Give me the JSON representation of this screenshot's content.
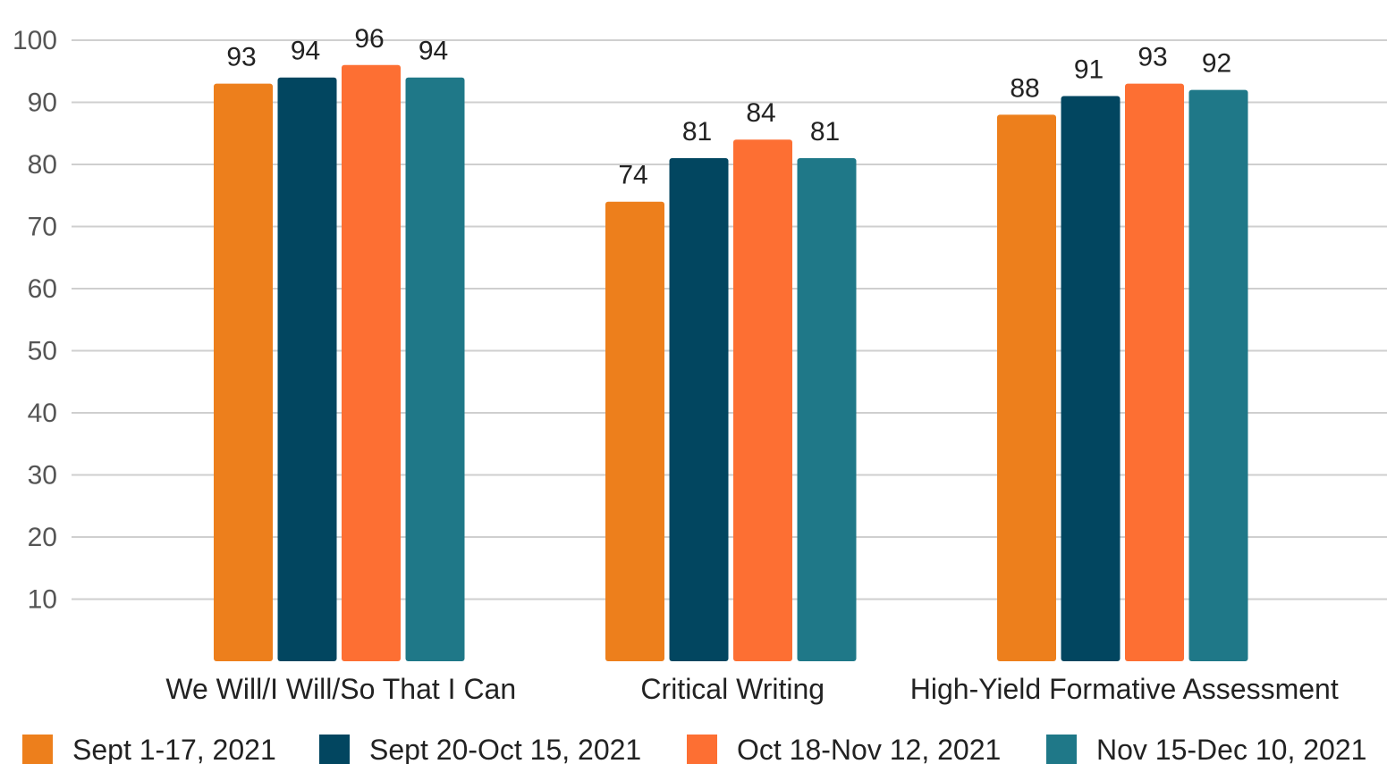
{
  "chart_data": {
    "type": "bar",
    "categories": [
      "We Will/I Will/So That I Can",
      "Critical Writing",
      "High-Yield Formative Assessment"
    ],
    "series": [
      {
        "name": "Sept 1-17, 2021",
        "values": [
          93,
          74,
          88
        ],
        "color": "#ed7f1c"
      },
      {
        "name": "Sept 20-Oct 15, 2021",
        "values": [
          94,
          81,
          91
        ],
        "color": "#024660"
      },
      {
        "name": "Oct 18-Nov 12, 2021",
        "values": [
          96,
          84,
          93
        ],
        "color": "#fd6f33"
      },
      {
        "name": "Nov 15-Dec 10, 2021",
        "values": [
          94,
          81,
          92
        ],
        "color": "#1f7888"
      }
    ],
    "yticks": [
      10,
      20,
      30,
      40,
      50,
      60,
      70,
      80,
      90,
      100
    ],
    "ylim": [
      0,
      100
    ],
    "title": "",
    "xlabel": "",
    "ylabel": "",
    "grid": true,
    "legend": "bottom",
    "data_labels": true
  }
}
